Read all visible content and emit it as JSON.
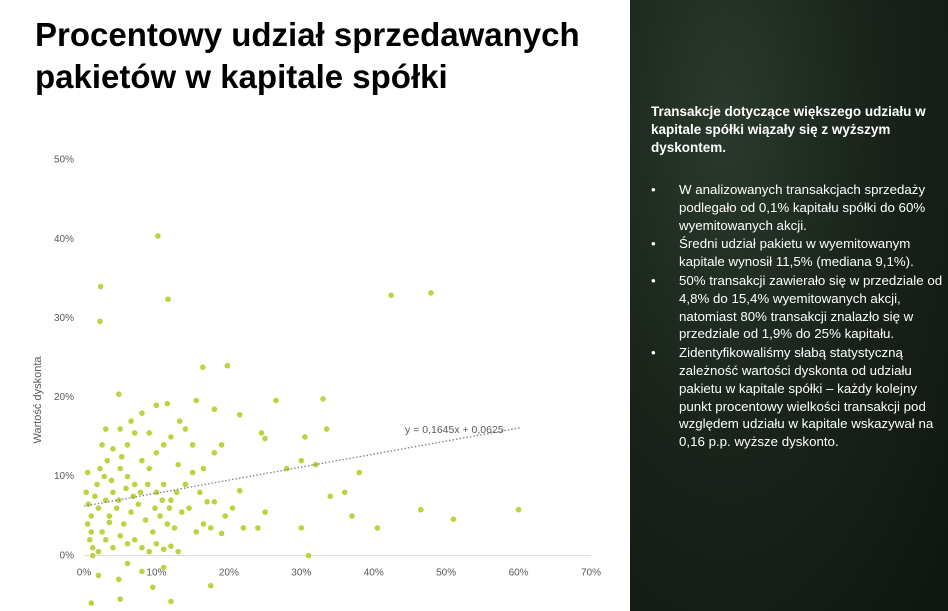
{
  "chart_data": {
    "type": "scatter",
    "title": "Procentowy udział sprzedawanych pakietów w kapitale spółki",
    "ylabel": "Wartość dyskonta",
    "color": "#bcd33f",
    "xlim": [
      0,
      70
    ],
    "ylim": [
      -7,
      50
    ],
    "xticks": [
      {
        "value": 0,
        "label": "0%"
      },
      {
        "value": 10,
        "label": "10%"
      },
      {
        "value": 20,
        "label": "20%"
      },
      {
        "value": 30,
        "label": "30%"
      },
      {
        "value": 40,
        "label": "40%"
      },
      {
        "value": 50,
        "label": "50%"
      },
      {
        "value": 60,
        "label": "60%"
      },
      {
        "value": 70,
        "label": "70%"
      }
    ],
    "yticks": [
      {
        "value": 0,
        "label": "0%"
      },
      {
        "value": 10,
        "label": "10%"
      },
      {
        "value": 20,
        "label": "20%"
      },
      {
        "value": 30,
        "label": "30%"
      },
      {
        "value": 40,
        "label": "40%"
      },
      {
        "value": 50,
        "label": "50%"
      }
    ],
    "x": [
      10.2,
      2.3,
      2.2,
      11.6,
      42.4,
      47.9,
      16.4,
      19.8,
      4.8,
      18,
      13.2,
      10,
      11.5,
      15.5,
      21.5,
      26.5,
      33,
      24.5,
      30.5,
      33.5,
      8,
      6.5,
      3,
      5,
      7,
      9,
      12,
      14,
      2.5,
      4,
      6,
      10,
      11,
      15,
      18,
      19,
      25,
      28,
      30,
      32,
      38,
      36,
      34,
      37,
      40.5,
      46.5,
      51,
      60,
      31,
      30,
      24,
      25,
      22,
      21.5,
      20.5,
      19.5,
      18,
      17,
      16.5,
      16,
      15,
      14,
      13,
      12,
      11,
      10,
      9,
      8,
      7,
      6,
      5,
      4,
      3,
      2,
      1,
      0.5,
      1.5,
      2.5,
      3.5,
      4.5,
      5.5,
      6.5,
      7.5,
      8.5,
      9.5,
      10.5,
      11.5,
      12.5,
      13.5,
      14.5,
      15.5,
      16.5,
      17.5,
      19,
      0.8,
      1.2,
      2,
      3,
      4,
      5,
      6,
      7,
      8,
      9,
      10,
      11,
      12,
      13,
      0.3,
      0.6,
      1,
      1.8,
      2.8,
      3.8,
      4.8,
      5.8,
      6.8,
      7.8,
      8.8,
      9.8,
      10.8,
      11.8,
      12.8,
      2.2,
      3.2,
      5.2,
      1,
      5,
      9.5,
      12,
      17.5,
      8,
      4.8,
      2,
      11,
      1.2,
      6,
      0.5,
      3.5
    ],
    "values": [
      40.4,
      34,
      29.6,
      32.4,
      32.9,
      33.2,
      23.8,
      24,
      20.4,
      18.5,
      17,
      19,
      19.2,
      19.6,
      17.8,
      19.6,
      19.8,
      15.5,
      15,
      16,
      18,
      17,
      16,
      16,
      15.5,
      15.5,
      15,
      16,
      14,
      13.5,
      14,
      13,
      14,
      14,
      13,
      14,
      14.8,
      11,
      12,
      11.5,
      10.5,
      8,
      7.5,
      5,
      3.5,
      5.8,
      4.6,
      5.8,
      0,
      3.5,
      3.5,
      5.5,
      3.5,
      8.2,
      6,
      5,
      6.8,
      6.8,
      11,
      8,
      10.5,
      9,
      11.5,
      7,
      9,
      8,
      11,
      12,
      9,
      10,
      11,
      8,
      7,
      6,
      5,
      4,
      7.5,
      3,
      5,
      6,
      4,
      5.5,
      6.5,
      4.5,
      3,
      5,
      4,
      3.5,
      5.5,
      6,
      3,
      4,
      3.5,
      2.8,
      2,
      1,
      0.5,
      2,
      1,
      2.5,
      1.5,
      2,
      1,
      0.5,
      1.5,
      0.8,
      1.2,
      0.5,
      8,
      6.5,
      3,
      9,
      10,
      9.5,
      7,
      8.5,
      7.5,
      8,
      9,
      6,
      7,
      6,
      8,
      11,
      12,
      12.5,
      -6,
      -5.5,
      -4,
      -5.8,
      -3.8,
      -2,
      -3,
      -2.5,
      -1.5,
      0,
      -1,
      10.5,
      4.2
    ],
    "trendline": {
      "x": [
        0,
        60.2
      ],
      "values": [
        6.25,
        16.15
      ]
    },
    "annotation": "y = 0,1645x + 0,0625"
  },
  "panel": {
    "heading": "Transakcje dotyczące większego udziału w kapitale spółki wiązały się z wyższym dyskontem.",
    "bullets": [
      "W analizowanych transakcjach sprzedaży podlegało od 0,1% kapitału spółki do 60% wyemitowanych akcji.",
      "Średni udział pakietu w wyemitowanym kapitale wynosił 11,5% (mediana 9,1%).",
      "50% transakcji zawierało się w przedziale od 4,8% do 15,4% wyemitowanych akcji, natomiast 80% transakcji znalazło się w przedziale od 1,9% do 25% kapitału.",
      "Zidentyfikowaliśmy słabą statystyczną zależność wartości dyskonta od udziału pakietu w kapitale spółki – każdy kolejny punkt procentowy wielkości transakcji pod względem udziału w kapitale wskazywał na 0,16 p.p. wyższe dyskonto."
    ]
  }
}
